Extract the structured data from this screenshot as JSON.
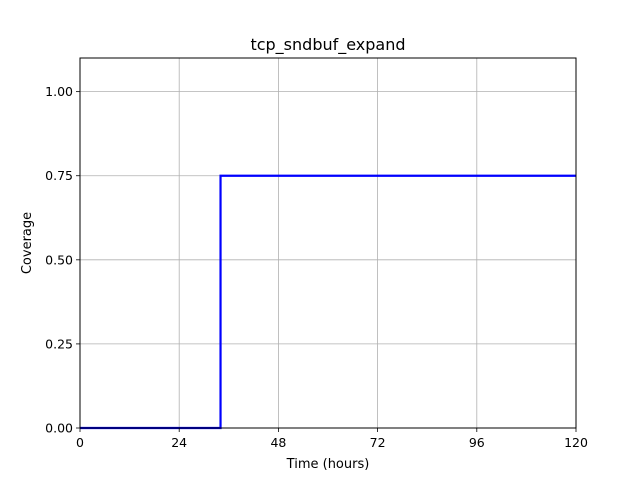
{
  "chart_data": {
    "type": "line",
    "title": "tcp_sndbuf_expand",
    "xlabel": "Time (hours)",
    "ylabel": "Coverage",
    "xlim": [
      0,
      120
    ],
    "ylim": [
      0,
      1.1
    ],
    "xticks": [
      0,
      24,
      48,
      72,
      96,
      120
    ],
    "xtick_labels": [
      "0",
      "24",
      "48",
      "72",
      "96",
      "120"
    ],
    "yticks": [
      0,
      0.25,
      0.5,
      0.75,
      1.0
    ],
    "ytick_labels": [
      "0.00",
      "0.25",
      "0.50",
      "0.75",
      "1.00"
    ],
    "grid": true,
    "step": true,
    "series": [
      {
        "color": "#0000ff",
        "x": [
          0,
          34,
          34,
          120
        ],
        "y": [
          0,
          0,
          0.75,
          0.75
        ]
      }
    ]
  }
}
